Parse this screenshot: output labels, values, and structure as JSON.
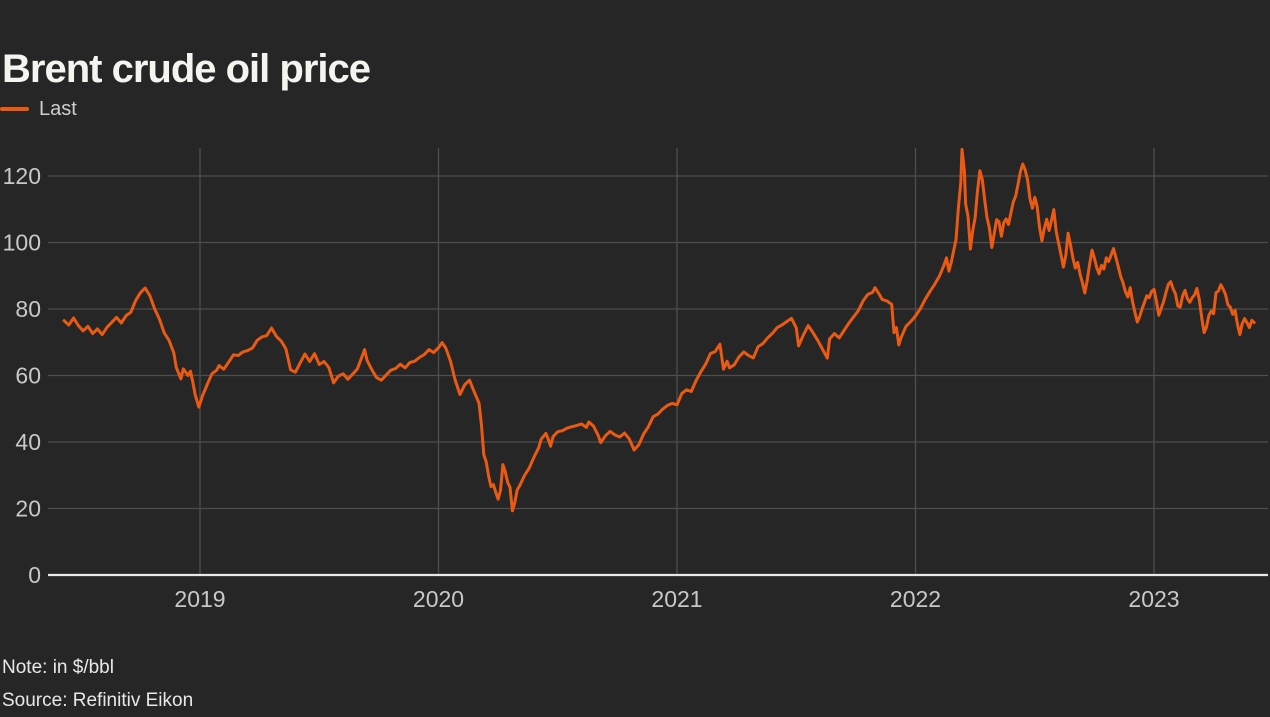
{
  "title": "Brent crude oil price",
  "legend": {
    "label": "Last"
  },
  "notes": {
    "note": "Note: in $/bbl",
    "source": "Source: Refinitiv Eikon"
  },
  "colors": {
    "background": "#262626",
    "line": "#eb5a13",
    "grid": "#4e4e4e",
    "axis": "#e8e8e8",
    "tick_text": "#c8c8c8",
    "title_text": "#f5f5f0"
  },
  "chart_data": {
    "type": "line",
    "title": "Brent crude oil price",
    "series_name": "Last",
    "unit": "$/bbl",
    "xlabel": "",
    "ylabel": "",
    "grid": true,
    "legend_position": "top-left",
    "x_range_years": [
      2018.42,
      2023.46
    ],
    "ylim": [
      0,
      130
    ],
    "y_ticks": [
      0,
      20,
      40,
      60,
      80,
      100,
      120
    ],
    "x_ticks": [
      2019,
      2020,
      2021,
      2022,
      2023
    ],
    "x_tick_labels": [
      "2019",
      "2020",
      "2021",
      "2022",
      "2023"
    ],
    "points": [
      [
        2018.43,
        76.5
      ],
      [
        2018.45,
        75.2
      ],
      [
        2018.47,
        77.3
      ],
      [
        2018.49,
        75.0
      ],
      [
        2018.51,
        73.4
      ],
      [
        2018.53,
        74.8
      ],
      [
        2018.55,
        72.6
      ],
      [
        2018.57,
        74.0
      ],
      [
        2018.59,
        72.3
      ],
      [
        2018.61,
        74.5
      ],
      [
        2018.63,
        76.0
      ],
      [
        2018.65,
        77.5
      ],
      [
        2018.67,
        75.8
      ],
      [
        2018.69,
        78.0
      ],
      [
        2018.71,
        79.0
      ],
      [
        2018.73,
        82.5
      ],
      [
        2018.75,
        84.9
      ],
      [
        2018.77,
        86.3
      ],
      [
        2018.79,
        84.0
      ],
      [
        2018.81,
        80.0
      ],
      [
        2018.83,
        76.9
      ],
      [
        2018.85,
        72.8
      ],
      [
        2018.87,
        70.6
      ],
      [
        2018.89,
        66.8
      ],
      [
        2018.9,
        62.5
      ],
      [
        2018.92,
        59.0
      ],
      [
        2018.93,
        62.0
      ],
      [
        2018.95,
        60.0
      ],
      [
        2018.96,
        61.3
      ],
      [
        2018.97,
        58.0
      ],
      [
        2018.98,
        54.2
      ],
      [
        2018.995,
        50.5
      ],
      [
        2019.01,
        53.8
      ],
      [
        2019.03,
        57.3
      ],
      [
        2019.05,
        60.5
      ],
      [
        2019.07,
        61.6
      ],
      [
        2019.08,
        63.0
      ],
      [
        2019.1,
        61.9
      ],
      [
        2019.12,
        64.0
      ],
      [
        2019.14,
        66.2
      ],
      [
        2019.16,
        66.0
      ],
      [
        2019.18,
        67.1
      ],
      [
        2019.2,
        67.5
      ],
      [
        2019.22,
        68.3
      ],
      [
        2019.24,
        70.6
      ],
      [
        2019.26,
        71.6
      ],
      [
        2019.28,
        72.0
      ],
      [
        2019.3,
        74.3
      ],
      [
        2019.32,
        71.8
      ],
      [
        2019.34,
        70.4
      ],
      [
        2019.36,
        68.0
      ],
      [
        2019.38,
        61.7
      ],
      [
        2019.4,
        61.0
      ],
      [
        2019.42,
        63.8
      ],
      [
        2019.44,
        66.5
      ],
      [
        2019.46,
        64.2
      ],
      [
        2019.48,
        66.6
      ],
      [
        2019.5,
        63.3
      ],
      [
        2019.52,
        64.2
      ],
      [
        2019.54,
        62.4
      ],
      [
        2019.56,
        57.8
      ],
      [
        2019.58,
        59.8
      ],
      [
        2019.6,
        60.5
      ],
      [
        2019.62,
        58.9
      ],
      [
        2019.64,
        60.4
      ],
      [
        2019.66,
        62.0
      ],
      [
        2019.69,
        67.8
      ],
      [
        2019.7,
        64.6
      ],
      [
        2019.72,
        61.8
      ],
      [
        2019.74,
        59.4
      ],
      [
        2019.76,
        58.6
      ],
      [
        2019.78,
        60.1
      ],
      [
        2019.8,
        61.6
      ],
      [
        2019.82,
        62.1
      ],
      [
        2019.84,
        63.4
      ],
      [
        2019.86,
        62.3
      ],
      [
        2019.88,
        63.9
      ],
      [
        2019.9,
        64.3
      ],
      [
        2019.92,
        65.4
      ],
      [
        2019.94,
        66.3
      ],
      [
        2019.96,
        67.8
      ],
      [
        2019.98,
        66.9
      ],
      [
        2020.0,
        68.4
      ],
      [
        2020.015,
        69.9
      ],
      [
        2020.03,
        68.3
      ],
      [
        2020.05,
        64.4
      ],
      [
        2020.07,
        58.6
      ],
      [
        2020.09,
        54.3
      ],
      [
        2020.11,
        57.2
      ],
      [
        2020.13,
        58.6
      ],
      [
        2020.15,
        55.0
      ],
      [
        2020.17,
        51.7
      ],
      [
        2020.18,
        45.3
      ],
      [
        2020.19,
        36.2
      ],
      [
        2020.2,
        34.0
      ],
      [
        2020.21,
        29.8
      ],
      [
        2020.22,
        26.6
      ],
      [
        2020.23,
        27.2
      ],
      [
        2020.24,
        24.9
      ],
      [
        2020.25,
        22.8
      ],
      [
        2020.26,
        25.5
      ],
      [
        2020.27,
        33.2
      ],
      [
        2020.28,
        31.0
      ],
      [
        2020.29,
        27.8
      ],
      [
        2020.3,
        26.4
      ],
      [
        2020.31,
        19.3
      ],
      [
        2020.32,
        21.8
      ],
      [
        2020.33,
        25.6
      ],
      [
        2020.34,
        26.8
      ],
      [
        2020.36,
        29.9
      ],
      [
        2020.38,
        32.1
      ],
      [
        2020.4,
        35.4
      ],
      [
        2020.42,
        38.3
      ],
      [
        2020.43,
        40.8
      ],
      [
        2020.45,
        42.6
      ],
      [
        2020.46,
        40.9
      ],
      [
        2020.47,
        38.7
      ],
      [
        2020.48,
        41.6
      ],
      [
        2020.5,
        43.1
      ],
      [
        2020.52,
        43.4
      ],
      [
        2020.54,
        44.2
      ],
      [
        2020.56,
        44.6
      ],
      [
        2020.58,
        45.0
      ],
      [
        2020.6,
        45.4
      ],
      [
        2020.62,
        44.4
      ],
      [
        2020.63,
        46.0
      ],
      [
        2020.65,
        44.8
      ],
      [
        2020.67,
        41.9
      ],
      [
        2020.68,
        39.8
      ],
      [
        2020.7,
        41.9
      ],
      [
        2020.72,
        43.2
      ],
      [
        2020.74,
        42.1
      ],
      [
        2020.76,
        41.5
      ],
      [
        2020.78,
        42.7
      ],
      [
        2020.8,
        40.9
      ],
      [
        2020.82,
        37.6
      ],
      [
        2020.84,
        39.2
      ],
      [
        2020.86,
        42.4
      ],
      [
        2020.88,
        44.6
      ],
      [
        2020.9,
        47.6
      ],
      [
        2020.92,
        48.4
      ],
      [
        2020.94,
        49.9
      ],
      [
        2020.96,
        51.0
      ],
      [
        2020.98,
        51.6
      ],
      [
        2021.0,
        51.2
      ],
      [
        2021.02,
        54.6
      ],
      [
        2021.04,
        55.7
      ],
      [
        2021.06,
        55.2
      ],
      [
        2021.08,
        58.5
      ],
      [
        2021.1,
        61.1
      ],
      [
        2021.12,
        63.4
      ],
      [
        2021.14,
        66.6
      ],
      [
        2021.16,
        67.2
      ],
      [
        2021.18,
        69.4
      ],
      [
        2021.195,
        61.9
      ],
      [
        2021.21,
        64.3
      ],
      [
        2021.22,
        62.3
      ],
      [
        2021.24,
        63.2
      ],
      [
        2021.26,
        65.6
      ],
      [
        2021.28,
        67.1
      ],
      [
        2021.3,
        66.0
      ],
      [
        2021.32,
        65.3
      ],
      [
        2021.34,
        68.7
      ],
      [
        2021.36,
        69.6
      ],
      [
        2021.38,
        71.3
      ],
      [
        2021.4,
        72.7
      ],
      [
        2021.42,
        74.4
      ],
      [
        2021.44,
        75.2
      ],
      [
        2021.46,
        76.2
      ],
      [
        2021.48,
        77.2
      ],
      [
        2021.5,
        74.3
      ],
      [
        2021.51,
        68.9
      ],
      [
        2021.53,
        72.2
      ],
      [
        2021.55,
        75.0
      ],
      [
        2021.57,
        72.9
      ],
      [
        2021.59,
        70.6
      ],
      [
        2021.61,
        67.9
      ],
      [
        2021.63,
        65.2
      ],
      [
        2021.64,
        71.0
      ],
      [
        2021.66,
        72.6
      ],
      [
        2021.68,
        71.3
      ],
      [
        2021.7,
        73.5
      ],
      [
        2021.72,
        75.7
      ],
      [
        2021.74,
        77.6
      ],
      [
        2021.76,
        79.5
      ],
      [
        2021.78,
        82.4
      ],
      [
        2021.8,
        84.4
      ],
      [
        2021.82,
        85.0
      ],
      [
        2021.83,
        86.4
      ],
      [
        2021.85,
        84.2
      ],
      [
        2021.86,
        82.9
      ],
      [
        2021.88,
        82.4
      ],
      [
        2021.9,
        81.4
      ],
      [
        2021.91,
        72.9
      ],
      [
        2021.92,
        74.4
      ],
      [
        2021.93,
        69.2
      ],
      [
        2021.94,
        71.5
      ],
      [
        2021.96,
        74.8
      ],
      [
        2021.98,
        76.2
      ],
      [
        2022.0,
        77.9
      ],
      [
        2022.02,
        80.1
      ],
      [
        2022.04,
        82.8
      ],
      [
        2022.06,
        85.2
      ],
      [
        2022.08,
        87.4
      ],
      [
        2022.1,
        89.8
      ],
      [
        2022.12,
        93.3
      ],
      [
        2022.13,
        95.4
      ],
      [
        2022.14,
        91.4
      ],
      [
        2022.15,
        94.1
      ],
      [
        2022.16,
        97.6
      ],
      [
        2022.17,
        100.8
      ],
      [
        2022.18,
        110.5
      ],
      [
        2022.19,
        118.0
      ],
      [
        2022.195,
        128.0
      ],
      [
        2022.205,
        121.5
      ],
      [
        2022.21,
        111.6
      ],
      [
        2022.22,
        107.9
      ],
      [
        2022.23,
        98.0
      ],
      [
        2022.24,
        103.5
      ],
      [
        2022.25,
        107.4
      ],
      [
        2022.26,
        115.5
      ],
      [
        2022.27,
        121.6
      ],
      [
        2022.28,
        118.9
      ],
      [
        2022.29,
        112.8
      ],
      [
        2022.3,
        107.5
      ],
      [
        2022.31,
        104.3
      ],
      [
        2022.32,
        98.5
      ],
      [
        2022.33,
        102.6
      ],
      [
        2022.34,
        106.9
      ],
      [
        2022.35,
        106.3
      ],
      [
        2022.36,
        101.9
      ],
      [
        2022.37,
        105.9
      ],
      [
        2022.38,
        107.1
      ],
      [
        2022.39,
        105.4
      ],
      [
        2022.4,
        108.9
      ],
      [
        2022.41,
        112.2
      ],
      [
        2022.42,
        114.0
      ],
      [
        2022.43,
        117.6
      ],
      [
        2022.44,
        121.3
      ],
      [
        2022.45,
        123.6
      ],
      [
        2022.46,
        121.8
      ],
      [
        2022.47,
        118.8
      ],
      [
        2022.48,
        113.1
      ],
      [
        2022.49,
        110.3
      ],
      [
        2022.5,
        113.6
      ],
      [
        2022.51,
        110.9
      ],
      [
        2022.52,
        104.7
      ],
      [
        2022.53,
        100.5
      ],
      [
        2022.54,
        104.2
      ],
      [
        2022.55,
        107.0
      ],
      [
        2022.56,
        103.6
      ],
      [
        2022.57,
        106.6
      ],
      [
        2022.58,
        109.9
      ],
      [
        2022.59,
        103.3
      ],
      [
        2022.6,
        99.8
      ],
      [
        2022.61,
        96.3
      ],
      [
        2022.62,
        92.6
      ],
      [
        2022.63,
        96.1
      ],
      [
        2022.64,
        102.8
      ],
      [
        2022.65,
        99.2
      ],
      [
        2022.66,
        95.4
      ],
      [
        2022.67,
        92.3
      ],
      [
        2022.68,
        94.0
      ],
      [
        2022.69,
        90.4
      ],
      [
        2022.7,
        87.8
      ],
      [
        2022.71,
        84.8
      ],
      [
        2022.72,
        88.6
      ],
      [
        2022.73,
        93.4
      ],
      [
        2022.74,
        97.7
      ],
      [
        2022.75,
        95.3
      ],
      [
        2022.76,
        92.4
      ],
      [
        2022.77,
        90.6
      ],
      [
        2022.78,
        93.1
      ],
      [
        2022.79,
        92.0
      ],
      [
        2022.8,
        95.4
      ],
      [
        2022.81,
        94.3
      ],
      [
        2022.82,
        96.2
      ],
      [
        2022.83,
        98.2
      ],
      [
        2022.84,
        95.6
      ],
      [
        2022.85,
        92.8
      ],
      [
        2022.86,
        89.8
      ],
      [
        2022.87,
        87.9
      ],
      [
        2022.88,
        85.2
      ],
      [
        2022.89,
        83.6
      ],
      [
        2022.9,
        86.4
      ],
      [
        2022.91,
        82.3
      ],
      [
        2022.92,
        79.0
      ],
      [
        2022.93,
        76.1
      ],
      [
        2022.94,
        77.7
      ],
      [
        2022.95,
        80.1
      ],
      [
        2022.96,
        82.0
      ],
      [
        2022.97,
        84.0
      ],
      [
        2022.98,
        83.4
      ],
      [
        2022.99,
        85.3
      ],
      [
        2023.0,
        85.9
      ],
      [
        2023.01,
        82.4
      ],
      [
        2023.02,
        78.1
      ],
      [
        2023.03,
        80.2
      ],
      [
        2023.04,
        82.1
      ],
      [
        2023.05,
        84.9
      ],
      [
        2023.06,
        87.4
      ],
      [
        2023.07,
        88.2
      ],
      [
        2023.08,
        86.1
      ],
      [
        2023.09,
        84.5
      ],
      [
        2023.1,
        80.9
      ],
      [
        2023.11,
        80.6
      ],
      [
        2023.12,
        83.9
      ],
      [
        2023.13,
        85.6
      ],
      [
        2023.14,
        83.1
      ],
      [
        2023.15,
        82.0
      ],
      [
        2023.16,
        83.4
      ],
      [
        2023.17,
        84.2
      ],
      [
        2023.18,
        86.2
      ],
      [
        2023.19,
        82.8
      ],
      [
        2023.2,
        77.4
      ],
      [
        2023.21,
        72.9
      ],
      [
        2023.22,
        74.6
      ],
      [
        2023.23,
        78.1
      ],
      [
        2023.24,
        79.4
      ],
      [
        2023.25,
        78.6
      ],
      [
        2023.26,
        84.9
      ],
      [
        2023.27,
        85.4
      ],
      [
        2023.28,
        87.3
      ],
      [
        2023.29,
        86.0
      ],
      [
        2023.3,
        84.4
      ],
      [
        2023.31,
        81.3
      ],
      [
        2023.32,
        80.5
      ],
      [
        2023.33,
        78.4
      ],
      [
        2023.34,
        79.6
      ],
      [
        2023.35,
        75.3
      ],
      [
        2023.36,
        72.3
      ],
      [
        2023.37,
        75.6
      ],
      [
        2023.38,
        77.1
      ],
      [
        2023.39,
        75.9
      ],
      [
        2023.4,
        74.4
      ],
      [
        2023.41,
        76.6
      ],
      [
        2023.42,
        75.9
      ]
    ]
  }
}
